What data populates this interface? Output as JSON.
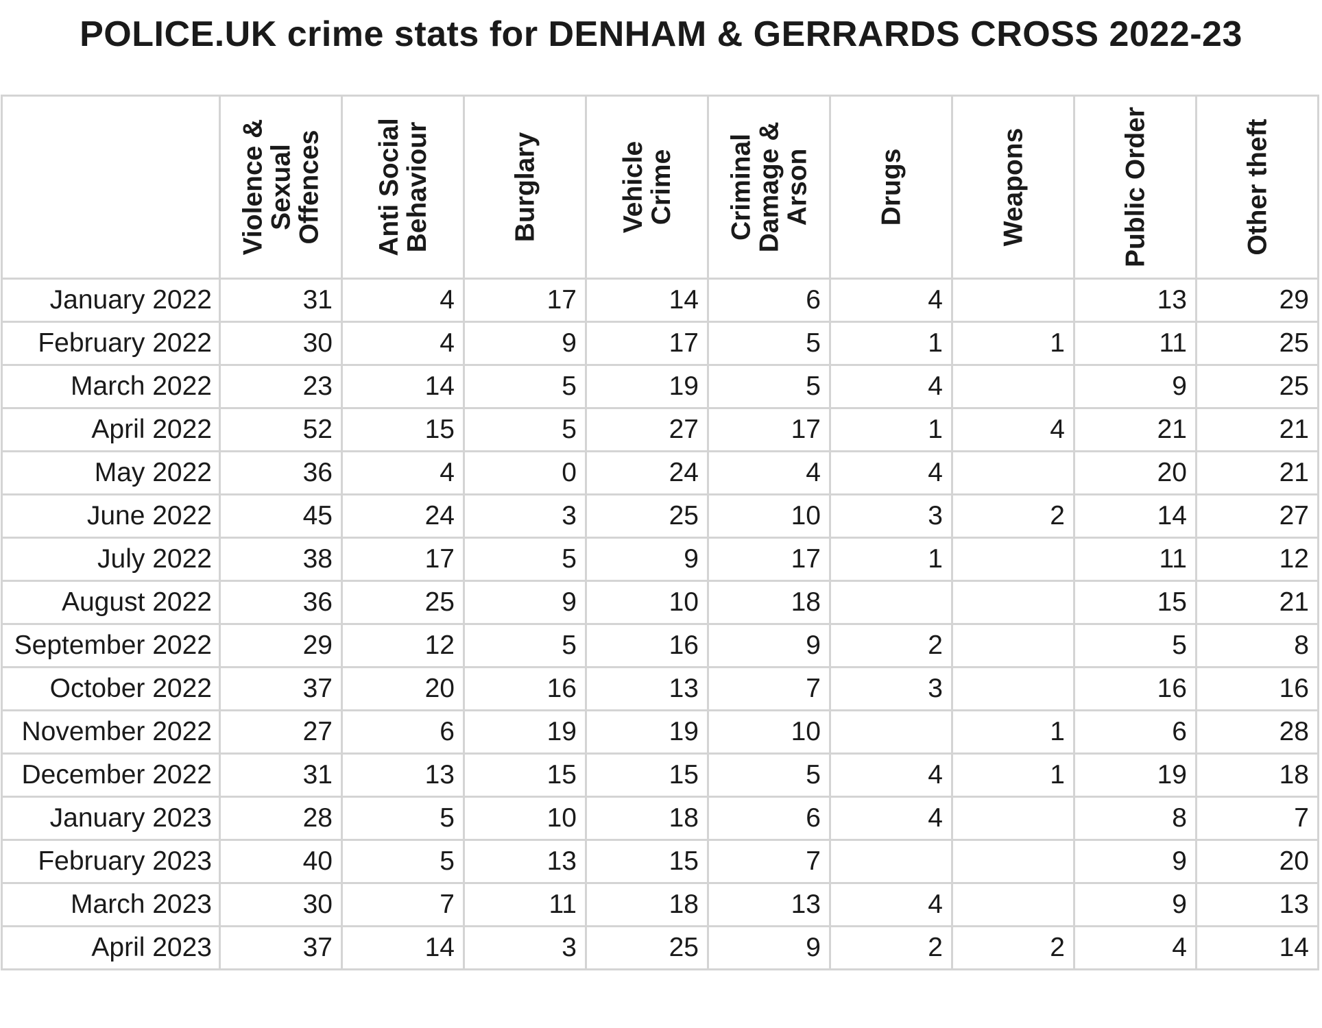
{
  "title": "POLICE.UK crime stats for DENHAM & GERRARDS CROSS 2022-23",
  "columns": [
    "Violence & Sexual Offences",
    "Anti Social Behaviour",
    "Burglary",
    "Vehicle Crime",
    "Criminal Damage & Arson",
    "Drugs",
    "Weapons",
    "Public Order",
    "Other theft"
  ],
  "rows": [
    {
      "month": "January 2022",
      "values": [
        "31",
        "4",
        "17",
        "14",
        "6",
        "4",
        "",
        "13",
        "29"
      ]
    },
    {
      "month": "February 2022",
      "values": [
        "30",
        "4",
        "9",
        "17",
        "5",
        "1",
        "1",
        "11",
        "25"
      ]
    },
    {
      "month": "March 2022",
      "values": [
        "23",
        "14",
        "5",
        "19",
        "5",
        "4",
        "",
        "9",
        "25"
      ]
    },
    {
      "month": "April 2022",
      "values": [
        "52",
        "15",
        "5",
        "27",
        "17",
        "1",
        "4",
        "21",
        "21"
      ]
    },
    {
      "month": "May 2022",
      "values": [
        "36",
        "4",
        "0",
        "24",
        "4",
        "4",
        "",
        "20",
        "21"
      ]
    },
    {
      "month": "June 2022",
      "values": [
        "45",
        "24",
        "3",
        "25",
        "10",
        "3",
        "2",
        "14",
        "27"
      ]
    },
    {
      "month": "July 2022",
      "values": [
        "38",
        "17",
        "5",
        "9",
        "17",
        "1",
        "",
        "11",
        "12"
      ]
    },
    {
      "month": "August 2022",
      "values": [
        "36",
        "25",
        "9",
        "10",
        "18",
        "",
        "",
        "15",
        "21"
      ]
    },
    {
      "month": "September 2022",
      "values": [
        "29",
        "12",
        "5",
        "16",
        "9",
        "2",
        "",
        "5",
        "8"
      ]
    },
    {
      "month": "October 2022",
      "values": [
        "37",
        "20",
        "16",
        "13",
        "7",
        "3",
        "",
        "16",
        "16"
      ]
    },
    {
      "month": "November 2022",
      "values": [
        "27",
        "6",
        "19",
        "19",
        "10",
        "",
        "1",
        "6",
        "28"
      ]
    },
    {
      "month": "December 2022",
      "values": [
        "31",
        "13",
        "15",
        "15",
        "5",
        "4",
        "1",
        "19",
        "18"
      ]
    },
    {
      "month": "January 2023",
      "values": [
        "28",
        "5",
        "10",
        "18",
        "6",
        "4",
        "",
        "8",
        "7"
      ]
    },
    {
      "month": "February 2023",
      "values": [
        "40",
        "5",
        "13",
        "15",
        "7",
        "",
        "",
        "9",
        "20"
      ]
    },
    {
      "month": "March 2023",
      "values": [
        "30",
        "7",
        "11",
        "18",
        "13",
        "4",
        "",
        "9",
        "13"
      ]
    },
    {
      "month": "April 2023",
      "values": [
        "37",
        "14",
        "3",
        "25",
        "9",
        "2",
        "2",
        "4",
        "14"
      ]
    }
  ],
  "colors": {
    "text": "#1a1a1a",
    "grid": "#d4d4d4",
    "background": "#ffffff"
  }
}
